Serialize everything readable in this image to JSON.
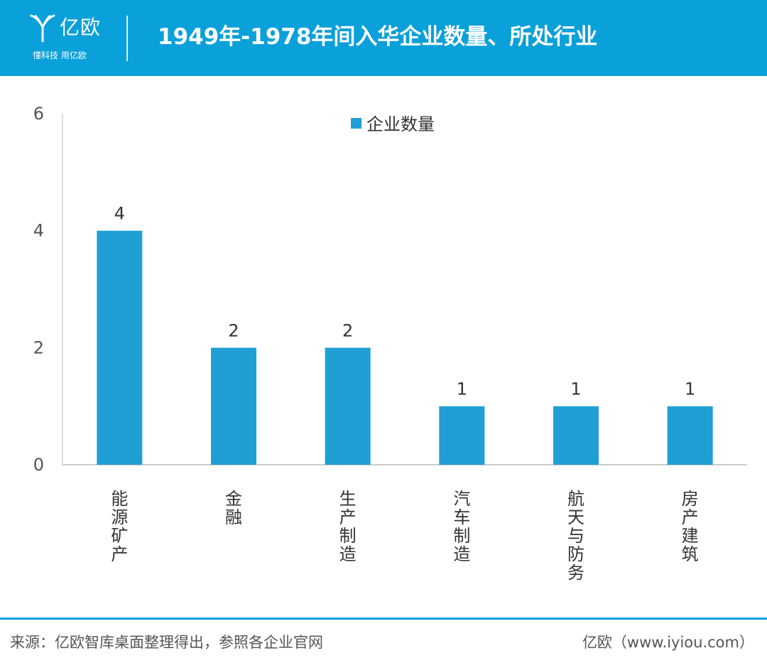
{
  "header": {
    "logo_name": "亿欧",
    "logo_slogan": "懂科技 用亿欧",
    "title": "1949年-1978年间入华企业数量、所处行业"
  },
  "colors": {
    "brand": "#0aa0da",
    "bar": "#1f9fd4",
    "axis_text": "#555555",
    "label_text": "#333333"
  },
  "chart_data": {
    "type": "bar",
    "categories": [
      "能源矿产",
      "金融",
      "生产制造",
      "汽车制造",
      "航天与防务",
      "房产建筑"
    ],
    "series": [
      {
        "name": "企业数量",
        "values": [
          4,
          2,
          2,
          1,
          1,
          1
        ]
      }
    ],
    "title": "",
    "xlabel": "",
    "ylabel": "",
    "ylim": [
      0,
      6
    ],
    "yticks": [
      0,
      2,
      4,
      6
    ],
    "data_labels": true,
    "grid": false,
    "legend": "top-center"
  },
  "footer": {
    "source": "来源：亿欧智库桌面整理得出，参照各企业官网",
    "brand": "亿欧（www.iyiou.com）"
  }
}
